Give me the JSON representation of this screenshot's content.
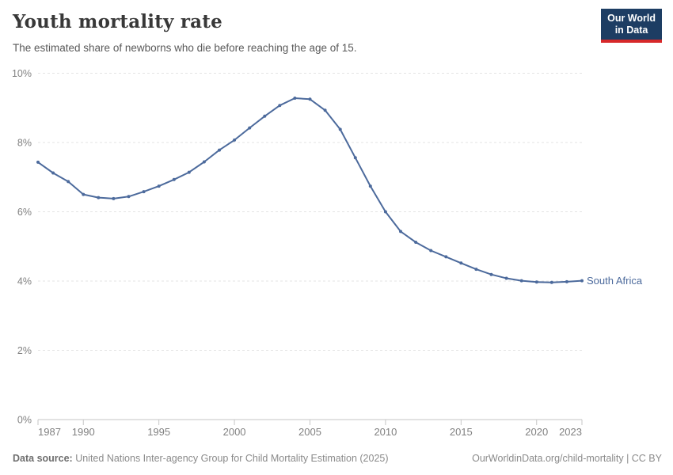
{
  "header": {
    "title": "Youth mortality rate",
    "subtitle": "The estimated share of newborns who die before reaching the age of 15.",
    "logo": {
      "line1": "Our World",
      "line2": "in Data"
    }
  },
  "footer": {
    "source_label": "Data source:",
    "source_text": " United Nations Inter-agency Group for Child Mortality Estimation (2025)",
    "right_text": "OurWorldinData.org/child-mortality | CC BY"
  },
  "chart_data": {
    "type": "line",
    "title": "Youth mortality rate",
    "xlabel": "",
    "ylabel": "",
    "xlim": [
      1987,
      2023
    ],
    "ylim": [
      0,
      10
    ],
    "grid": "horizontal-dashed",
    "legend_position": "end-of-line-label",
    "x": [
      1987,
      1988,
      1989,
      1990,
      1991,
      1992,
      1993,
      1994,
      1995,
      1996,
      1997,
      1998,
      1999,
      2000,
      2001,
      2002,
      2003,
      2004,
      2005,
      2006,
      2007,
      2008,
      2009,
      2010,
      2011,
      2012,
      2013,
      2014,
      2015,
      2016,
      2017,
      2018,
      2019,
      2020,
      2021,
      2022,
      2023
    ],
    "series": [
      {
        "name": "South Africa",
        "values": [
          7.43,
          7.12,
          6.87,
          6.5,
          6.41,
          6.38,
          6.44,
          6.58,
          6.74,
          6.93,
          7.14,
          7.44,
          7.78,
          8.07,
          8.42,
          8.76,
          9.07,
          9.28,
          9.25,
          8.93,
          8.38,
          7.56,
          6.74,
          6.0,
          5.43,
          5.12,
          4.88,
          4.7,
          4.52,
          4.34,
          4.19,
          4.08,
          4.01,
          3.97,
          3.96,
          3.98,
          4.01
        ]
      }
    ],
    "yticks": [
      0,
      2,
      4,
      6,
      8,
      10
    ],
    "ytick_labels": [
      "0%",
      "2%",
      "4%",
      "6%",
      "8%",
      "10%"
    ],
    "xticks": [
      1987,
      1990,
      1995,
      2000,
      2005,
      2010,
      2015,
      2020,
      2023
    ],
    "colors": {
      "line": "#4c6a9c",
      "entity_label": "#4c6a9c",
      "grid": "#e3e3e3",
      "axis": "#c6c6c6",
      "tick_text": "#818181"
    }
  }
}
